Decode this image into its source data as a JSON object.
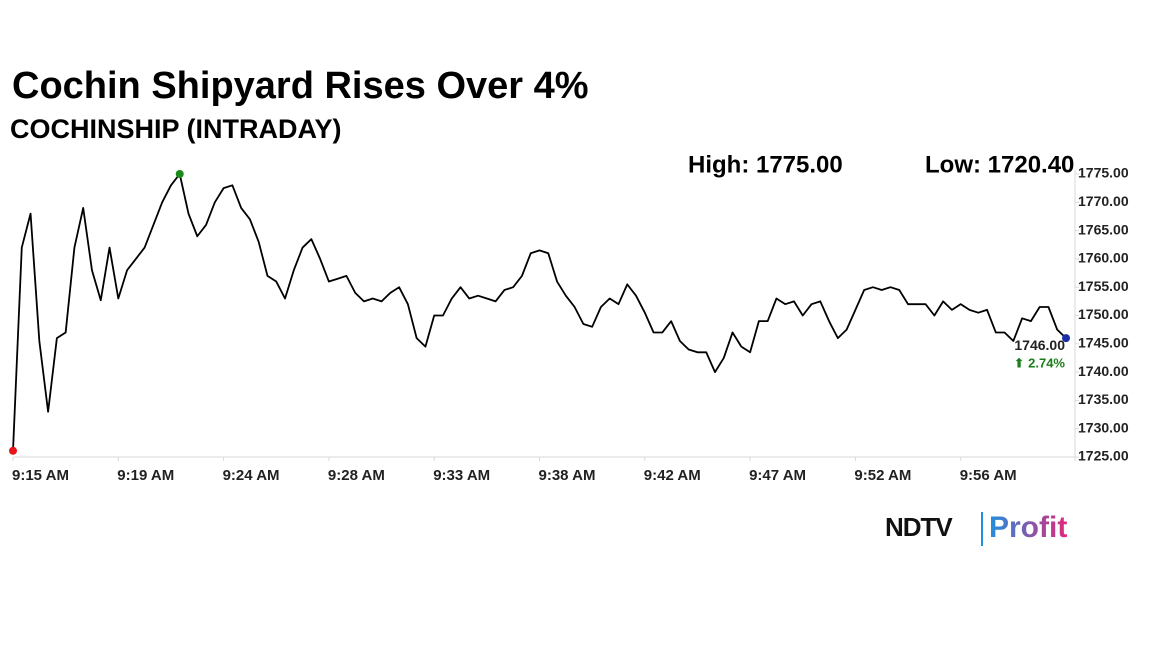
{
  "chart_data": {
    "type": "line",
    "title": "Cochin Shipyard Rises Over 4%",
    "subtitle": "COCHINSHIP (INTRADAY)",
    "high_text": "High: 1775.00",
    "low_text": "Low: 1720.40",
    "last_price_text": "1746.00",
    "change_text": "⬆ 2.74%",
    "change_color": "#1a7f1a",
    "color": "#000000",
    "start_marker_color": "#e8141c",
    "high_marker_color": "#1a8a1a",
    "end_marker_color": "#1a2fa8",
    "axis_color": "#d9d9d9",
    "categories": [
      "9:15 AM",
      null,
      null,
      null,
      null,
      null,
      null,
      null,
      null,
      null,
      null,
      null,
      "9:19 AM",
      null,
      null,
      null,
      null,
      null,
      null,
      null,
      null,
      null,
      null,
      null,
      "9:24 AM",
      null,
      null,
      null,
      null,
      null,
      null,
      null,
      null,
      null,
      null,
      null,
      "9:28 AM",
      null,
      null,
      null,
      null,
      null,
      null,
      null,
      null,
      null,
      null,
      null,
      "9:33 AM",
      null,
      null,
      null,
      null,
      null,
      null,
      null,
      null,
      null,
      null,
      null,
      "9:38 AM",
      null,
      null,
      null,
      null,
      null,
      null,
      null,
      null,
      null,
      null,
      null,
      "9:42 AM",
      null,
      null,
      null,
      null,
      null,
      null,
      null,
      null,
      null,
      null,
      null,
      "9:47 AM",
      null,
      null,
      null,
      null,
      null,
      null,
      null,
      null,
      null,
      null,
      null,
      "9:52 AM",
      null,
      null,
      null,
      null,
      null,
      null,
      null,
      null,
      null,
      null,
      null,
      "9:56 AM",
      null,
      null,
      null,
      null,
      null,
      null,
      null,
      null,
      null,
      null,
      null,
      null
    ],
    "values": [
      1726.1,
      1762,
      1768,
      1745.5,
      1733,
      1746,
      1747,
      1762,
      1769,
      1758,
      1752.7,
      1762,
      1753,
      1758,
      1760,
      1762,
      1766,
      1770,
      1773,
      1775,
      1768,
      1764,
      1766,
      1770,
      1772.5,
      1773,
      1769,
      1767,
      1763,
      1757,
      1756,
      1753,
      1758,
      1762,
      1763.5,
      1760,
      1756,
      1756.5,
      1757,
      1754,
      1752.5,
      1753,
      1752.5,
      1754,
      1755,
      1752,
      1746,
      1744.5,
      1750,
      1750,
      1753,
      1755,
      1753,
      1753.5,
      1753,
      1752.5,
      1754.5,
      1755,
      1757,
      1761,
      1761.5,
      1761,
      1756,
      1753.5,
      1751.5,
      1748.5,
      1748,
      1751.5,
      1753,
      1752,
      1755.5,
      1753.5,
      1750.5,
      1747,
      1747,
      1749,
      1745.5,
      1744,
      1743.5,
      1743.5,
      1740,
      1742.5,
      1747,
      1744.5,
      1743.5,
      1749,
      1749,
      1753,
      1752,
      1752.5,
      1750,
      1752,
      1752.5,
      1749,
      1746,
      1747.5,
      1751,
      1754.5,
      1755,
      1754.5,
      1755,
      1754.5,
      1752,
      1752,
      1752,
      1750,
      1752.5,
      1751,
      1752,
      1751,
      1750.5,
      1751,
      1747,
      1747,
      1745.5,
      1749.5,
      1749,
      1751.5,
      1751.5,
      1747.5,
      1746
    ],
    "ylim": [
      1725,
      1775
    ],
    "yticks": [
      {
        "value": 1725,
        "label": "1725.00"
      },
      {
        "value": 1730,
        "label": "1730.00"
      },
      {
        "value": 1735,
        "label": "1735.00"
      },
      {
        "value": 1740,
        "label": "1740.00"
      },
      {
        "value": 1745,
        "label": "1745.00"
      },
      {
        "value": 1750,
        "label": "1750.00"
      },
      {
        "value": 1755,
        "label": "1755.00"
      },
      {
        "value": 1760,
        "label": "1760.00"
      },
      {
        "value": 1765,
        "label": "1765.00"
      },
      {
        "value": 1770,
        "label": "1770.00"
      },
      {
        "value": 1775,
        "label": "1775.00"
      }
    ],
    "logo": {
      "brand": "NDTV",
      "product": "Profit"
    }
  }
}
